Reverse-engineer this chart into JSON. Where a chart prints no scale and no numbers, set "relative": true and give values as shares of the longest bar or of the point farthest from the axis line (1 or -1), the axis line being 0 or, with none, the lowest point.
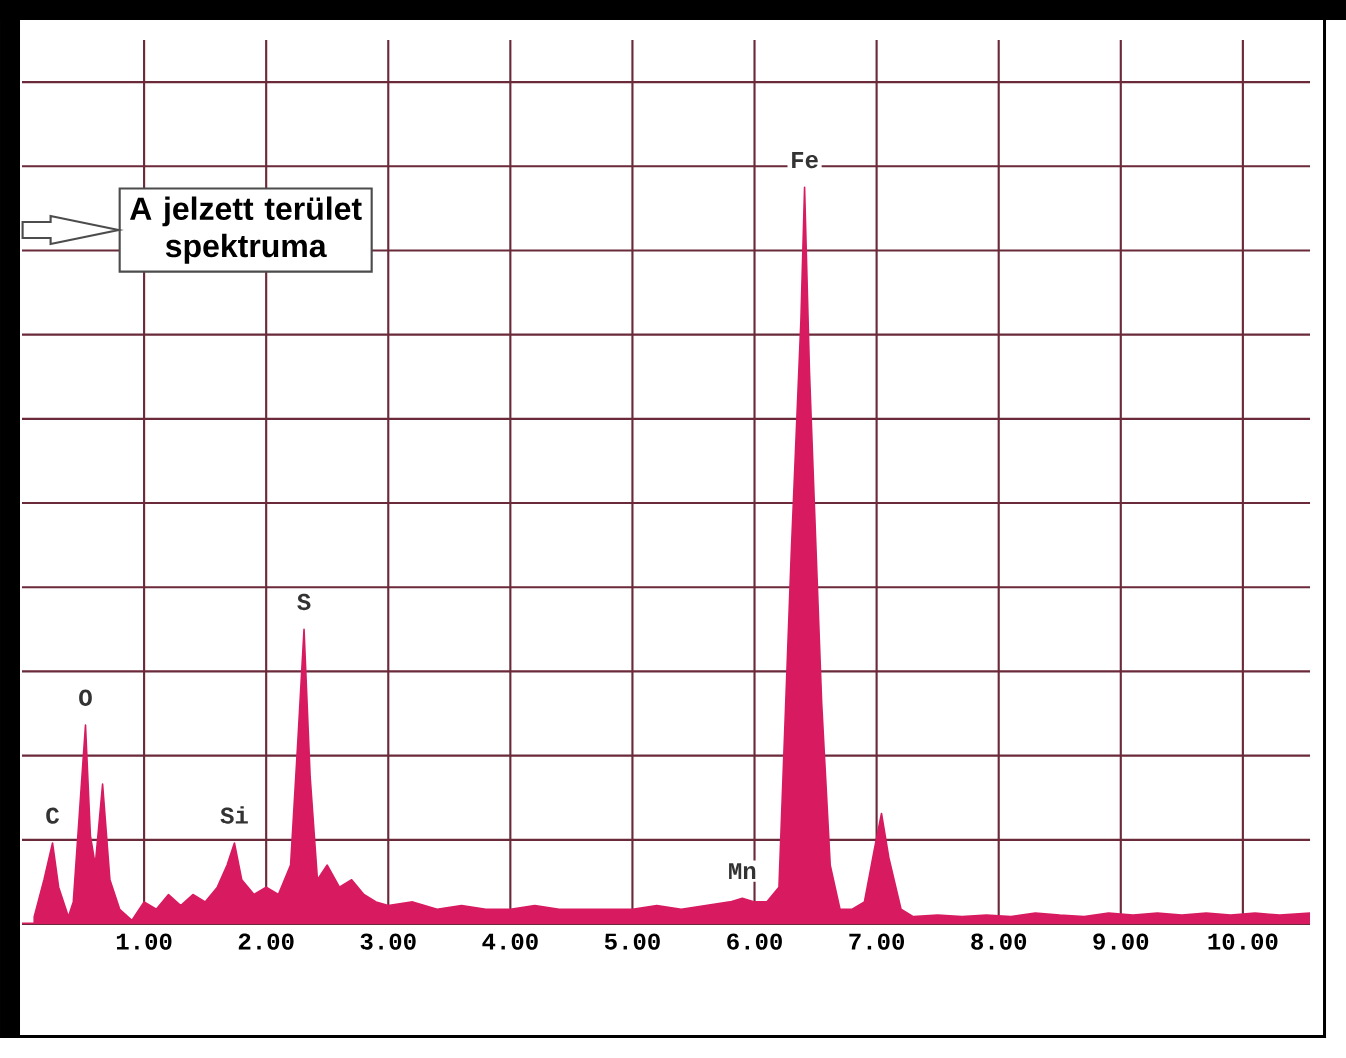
{
  "chart_data": {
    "type": "area",
    "relative": true,
    "color": "#d81b60",
    "grid": true,
    "x": [
      0.1,
      0.18,
      0.25,
      0.3,
      0.38,
      0.42,
      0.47,
      0.52,
      0.56,
      0.6,
      0.66,
      0.72,
      0.8,
      0.9,
      1.0,
      1.1,
      1.2,
      1.3,
      1.4,
      1.5,
      1.6,
      1.68,
      1.74,
      1.8,
      1.9,
      2.0,
      2.1,
      2.2,
      2.26,
      2.31,
      2.36,
      2.42,
      2.5,
      2.6,
      2.7,
      2.8,
      2.9,
      3.0,
      3.2,
      3.4,
      3.6,
      3.8,
      4.0,
      4.2,
      4.4,
      4.6,
      4.8,
      5.0,
      5.2,
      5.4,
      5.6,
      5.8,
      5.9,
      6.0,
      6.1,
      6.2,
      6.3,
      6.38,
      6.41,
      6.45,
      6.55,
      6.62,
      6.7,
      6.8,
      6.9,
      6.98,
      7.04,
      7.1,
      7.2,
      7.3,
      7.5,
      7.7,
      7.9,
      8.1,
      8.3,
      8.5,
      8.7,
      8.9,
      9.1,
      9.3,
      9.5,
      9.7,
      9.9,
      10.1,
      10.3,
      10.55
    ],
    "values": [
      0.01,
      0.06,
      0.11,
      0.05,
      0.01,
      0.03,
      0.15,
      0.27,
      0.12,
      0.08,
      0.19,
      0.06,
      0.02,
      0.005,
      0.03,
      0.02,
      0.04,
      0.025,
      0.04,
      0.03,
      0.05,
      0.08,
      0.11,
      0.06,
      0.04,
      0.05,
      0.04,
      0.08,
      0.25,
      0.4,
      0.2,
      0.06,
      0.08,
      0.05,
      0.06,
      0.04,
      0.03,
      0.025,
      0.03,
      0.02,
      0.025,
      0.02,
      0.02,
      0.025,
      0.02,
      0.02,
      0.02,
      0.02,
      0.025,
      0.02,
      0.025,
      0.03,
      0.035,
      0.03,
      0.03,
      0.05,
      0.5,
      0.82,
      1.0,
      0.75,
      0.3,
      0.08,
      0.02,
      0.02,
      0.03,
      0.1,
      0.15,
      0.09,
      0.02,
      0.01,
      0.012,
      0.01,
      0.012,
      0.01,
      0.015,
      0.012,
      0.01,
      0.015,
      0.012,
      0.015,
      0.012,
      0.015,
      0.012,
      0.015,
      0.012,
      0.015
    ],
    "xlim": [
      0,
      10.55
    ],
    "xticks": [
      {
        "value": 1,
        "label": "1.00"
      },
      {
        "value": 2,
        "label": "2.00"
      },
      {
        "value": 3,
        "label": "3.00"
      },
      {
        "value": 4,
        "label": "4.00"
      },
      {
        "value": 5,
        "label": "5.00"
      },
      {
        "value": 6,
        "label": "6.00"
      },
      {
        "value": 7,
        "label": "7.00"
      },
      {
        "value": 8,
        "label": "8.00"
      },
      {
        "value": 9,
        "label": "9.00"
      },
      {
        "value": 10,
        "label": "10.00"
      }
    ],
    "annotations": [
      {
        "text": "C",
        "x": 0.25,
        "y": 0.11
      },
      {
        "text": "O",
        "x": 0.52,
        "y": 0.27
      },
      {
        "text": "Si",
        "x": 1.74,
        "y": 0.11
      },
      {
        "text": "S",
        "x": 2.31,
        "y": 0.4
      },
      {
        "text": "Mn",
        "x": 5.9,
        "y": 0.035
      },
      {
        "text": "Fe",
        "x": 6.41,
        "y": 1.0
      },
      "A jelzett terület spektruma"
    ]
  }
}
